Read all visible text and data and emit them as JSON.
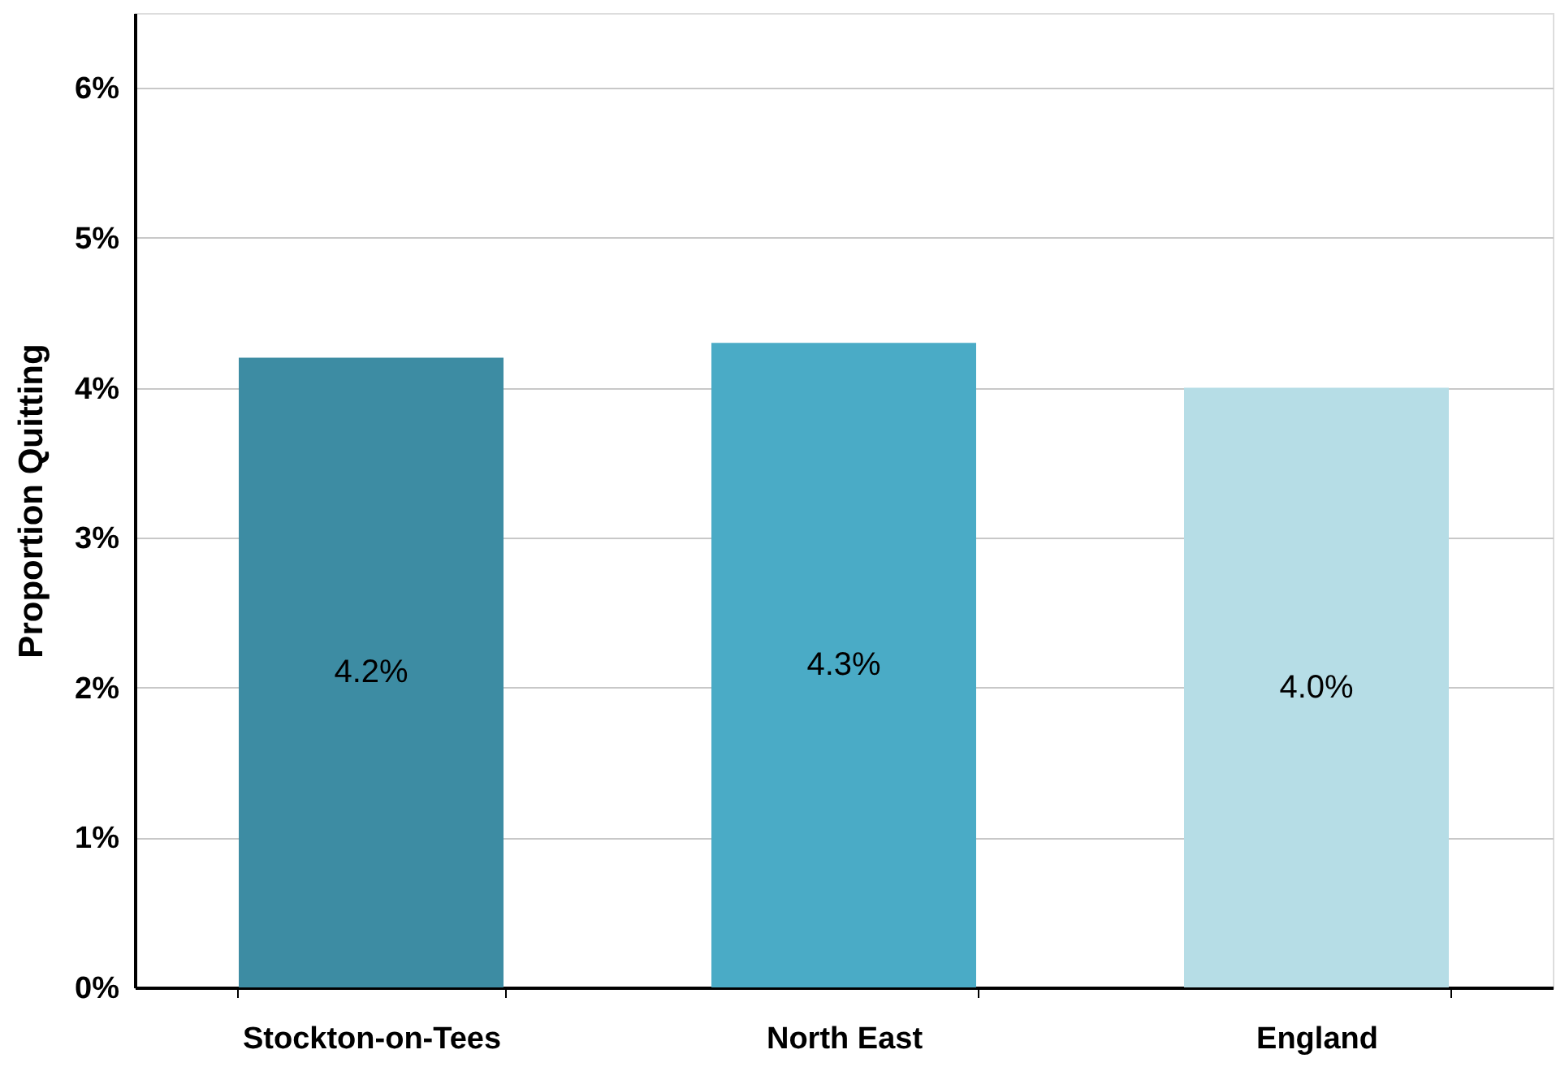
{
  "chart_data": {
    "type": "bar",
    "ylabel": "Proportion Quitting",
    "categories": [
      "Stockton-on-Tees",
      "North East",
      "England"
    ],
    "values": [
      4.2,
      4.3,
      4.0
    ],
    "colors": [
      "#3d8ca3",
      "#4aabc6",
      "#b6dde6"
    ],
    "value_labels": [
      "4.2%",
      "4.3%",
      "4.0%"
    ],
    "ylim": [
      0,
      6.5
    ],
    "yticks": [
      {
        "value": 0,
        "label": "0%"
      },
      {
        "value": 1,
        "label": "1%"
      },
      {
        "value": 2,
        "label": "2%"
      },
      {
        "value": 3,
        "label": "3%"
      },
      {
        "value": 4,
        "label": "4%"
      },
      {
        "value": 5,
        "label": "5%"
      },
      {
        "value": 6,
        "label": "6%"
      }
    ],
    "grid": "y"
  }
}
